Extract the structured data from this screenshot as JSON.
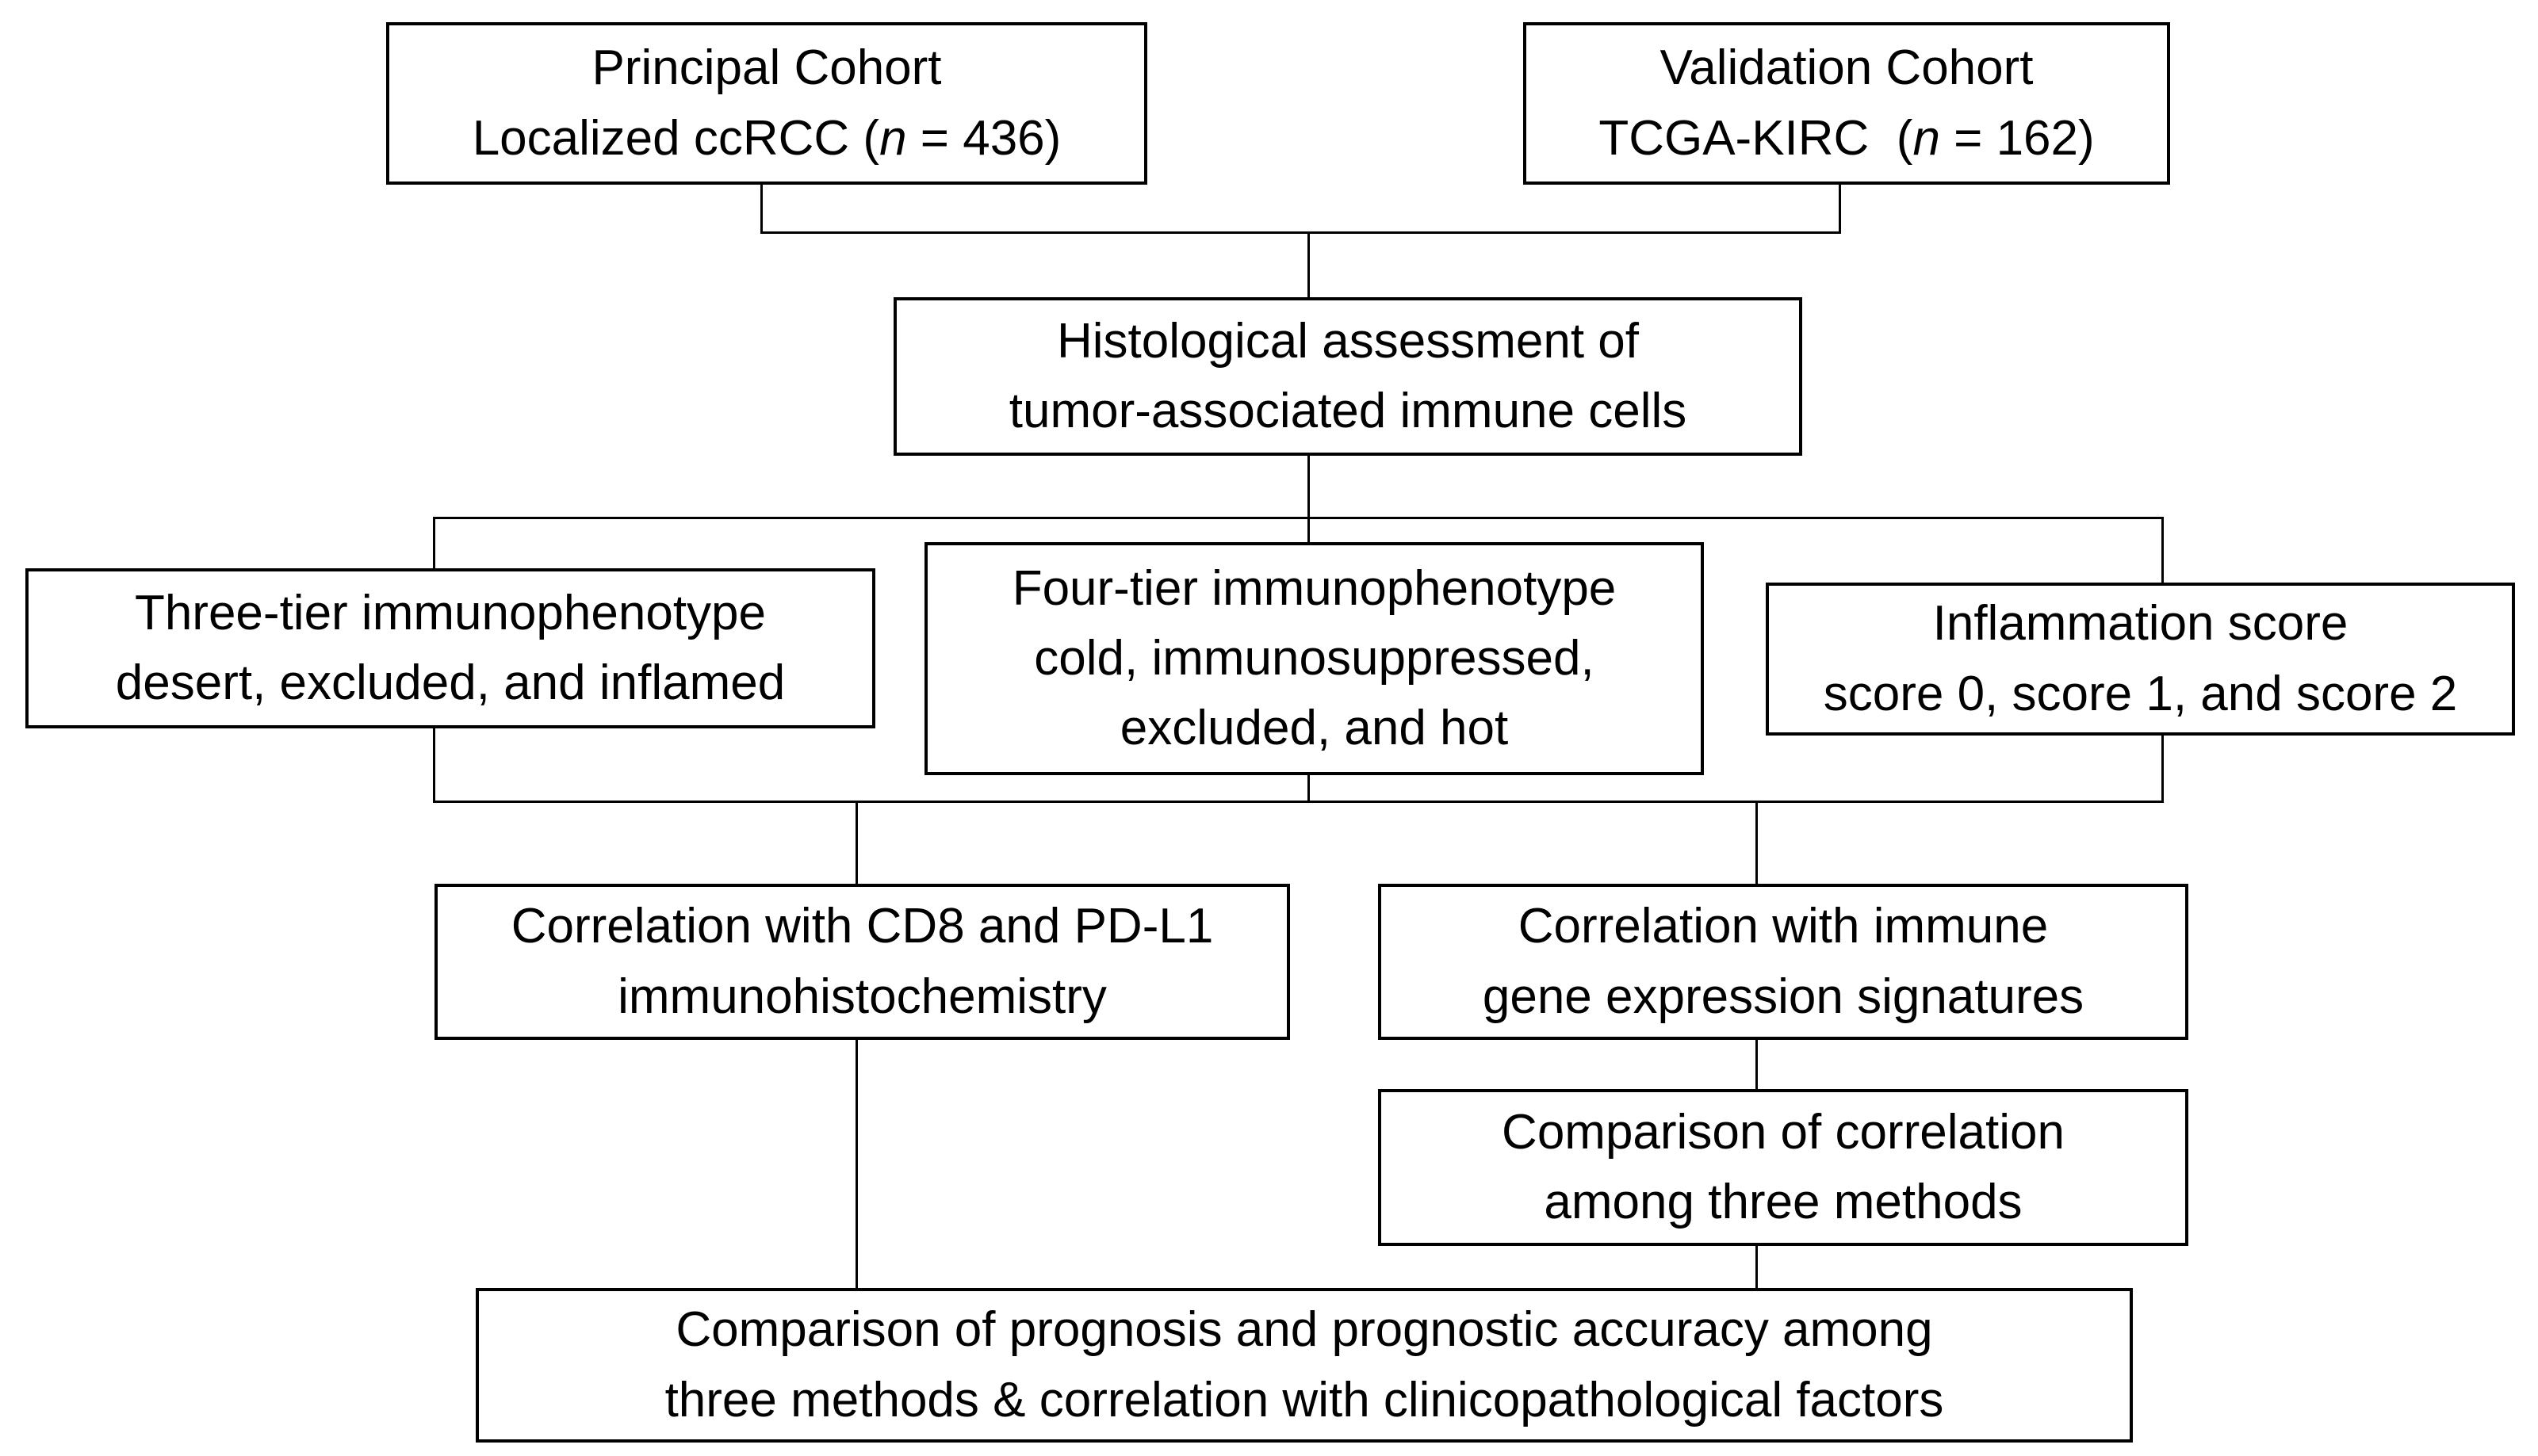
{
  "figure": {
    "kind": "study-design-flowchart",
    "colors": {
      "background": "#ffffff",
      "box_border": "#000000",
      "text": "#000000",
      "connector": "#000000"
    }
  },
  "nodes": [
    {
      "id": "principal-cohort",
      "lines": [
        [
          {
            "t": "Principal Cohort"
          }
        ],
        [
          {
            "t": "Localized ccRCC ("
          },
          {
            "t": "n",
            "i": true
          },
          {
            "t": " = 436)"
          }
        ]
      ]
    },
    {
      "id": "validation-cohort",
      "lines": [
        [
          {
            "t": "Validation Cohort"
          }
        ],
        [
          {
            "t": "TCGA-KIRC  ("
          },
          {
            "t": "n",
            "i": true
          },
          {
            "t": " = 162)"
          }
        ]
      ]
    },
    {
      "id": "histological-assessment",
      "lines": [
        [
          {
            "t": "Histological assessment of"
          }
        ],
        [
          {
            "t": "tumor-associated immune cells"
          }
        ]
      ]
    },
    {
      "id": "three-tier-immunophenotype",
      "lines": [
        [
          {
            "t": "Three-tier immunophenotype"
          }
        ],
        [
          {
            "t": "desert, excluded, and inflamed"
          }
        ]
      ]
    },
    {
      "id": "four-tier-immunophenotype",
      "lines": [
        [
          {
            "t": "Four-tier immunophenotype"
          }
        ],
        [
          {
            "t": "cold, immunosuppressed,"
          }
        ],
        [
          {
            "t": "excluded, and hot"
          }
        ]
      ]
    },
    {
      "id": "inflammation-score",
      "lines": [
        [
          {
            "t": "Inflammation score"
          }
        ],
        [
          {
            "t": "score 0, score 1, and score 2"
          }
        ]
      ]
    },
    {
      "id": "correlation-ihc",
      "lines": [
        [
          {
            "t": "Correlation with CD8 and PD-L1"
          }
        ],
        [
          {
            "t": "immunohistochemistry"
          }
        ]
      ]
    },
    {
      "id": "correlation-gene-signatures",
      "lines": [
        [
          {
            "t": "Correlation with immune"
          }
        ],
        [
          {
            "t": "gene expression signatures"
          }
        ]
      ]
    },
    {
      "id": "comparison-correlation",
      "lines": [
        [
          {
            "t": "Comparison of correlation"
          }
        ],
        [
          {
            "t": "among three methods"
          }
        ]
      ]
    },
    {
      "id": "comparison-prognosis",
      "lines": [
        [
          {
            "t": "Comparison of prognosis and prognostic accuracy among"
          }
        ],
        [
          {
            "t": "three methods & correlation with clinicopathological factors"
          }
        ]
      ]
    }
  ],
  "edges": [
    {
      "from": "principal-cohort",
      "to": "histological-assessment"
    },
    {
      "from": "validation-cohort",
      "to": "histological-assessment"
    },
    {
      "from": "histological-assessment",
      "to": "three-tier-immunophenotype"
    },
    {
      "from": "histological-assessment",
      "to": "four-tier-immunophenotype"
    },
    {
      "from": "histological-assessment",
      "to": "inflammation-score"
    },
    {
      "from": "three-tier-immunophenotype",
      "to": "correlation-ihc"
    },
    {
      "from": "four-tier-immunophenotype",
      "to": "correlation-ihc"
    },
    {
      "from": "inflammation-score",
      "to": "correlation-gene-signatures"
    },
    {
      "from": "correlation-gene-signatures",
      "to": "comparison-correlation"
    },
    {
      "from": "correlation-ihc",
      "to": "comparison-prognosis"
    },
    {
      "from": "comparison-correlation",
      "to": "comparison-prognosis"
    }
  ]
}
